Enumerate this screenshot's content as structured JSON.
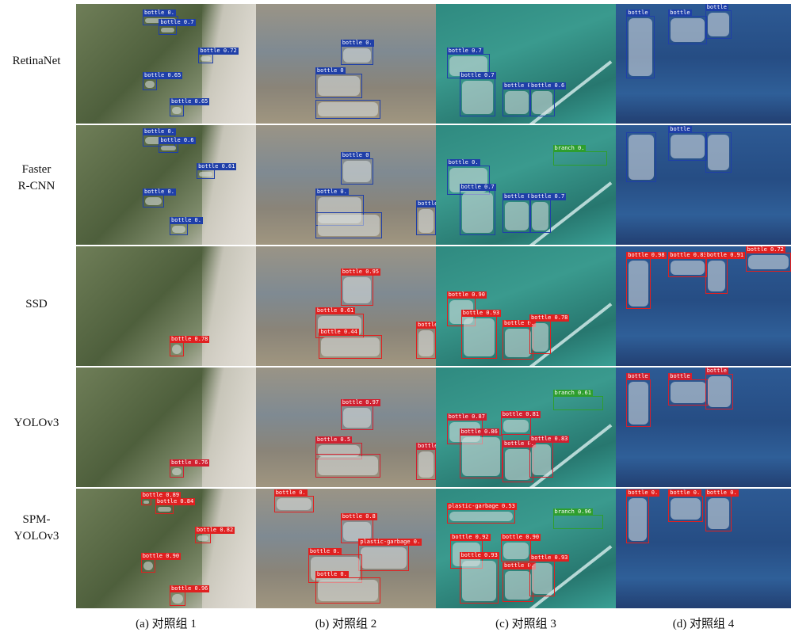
{
  "rows": [
    "RetinaNet",
    "Faster\nR-CNN",
    "SSD",
    "YOLOv3",
    "SPM-\nYOLOv3"
  ],
  "columns": [
    "(a) 对照组 1",
    "(b) 对照组 2",
    "(c) 对照组 3",
    "(d) 对照组 4"
  ],
  "scene_colors": [
    "#5f6e4a",
    "#8c8a80",
    "#2f8a80",
    "#2b4f86"
  ],
  "box_colors": {
    "RetinaNet": "#1f3fa8",
    "Faster R-CNN": "#1f3fa8",
    "SSD": "#e02020",
    "YOLOv3": "#d02030",
    "SPM-YOLOv3": "#e02020",
    "branch": "#2e9e2e"
  },
  "detections": [
    [
      [
        [
          "bottle 0.",
          0.37,
          0.1,
          0.2,
          0.08
        ],
        [
          "bottle 0.7",
          0.46,
          0.18,
          0.1,
          0.08
        ],
        [
          "bottle 0.72",
          0.68,
          0.42,
          0.08,
          0.08
        ],
        [
          "bottle 0.65",
          0.37,
          0.62,
          0.08,
          0.1
        ],
        [
          "bottle 0.65",
          0.52,
          0.84,
          0.08,
          0.1
        ]
      ],
      [
        [
          "bottle 0.",
          0.47,
          0.35,
          0.18,
          0.16
        ],
        [
          "bottle 0",
          0.33,
          0.58,
          0.26,
          0.21
        ],
        [
          "",
          0.33,
          0.8,
          0.36,
          0.16
        ]
      ],
      [
        [
          "bottle 0.7",
          0.06,
          0.42,
          0.24,
          0.2
        ],
        [
          "bottle 0.7",
          0.13,
          0.62,
          0.2,
          0.32
        ],
        [
          "bottle 0.6",
          0.37,
          0.71,
          0.16,
          0.23
        ],
        [
          "bottle 0.6",
          0.52,
          0.71,
          0.14,
          0.23
        ]
      ],
      [
        [
          "bottle",
          0.06,
          0.1,
          0.16,
          0.52
        ],
        [
          "bottle",
          0.3,
          0.1,
          0.22,
          0.24
        ],
        [
          "bottle",
          0.51,
          0.05,
          0.15,
          0.24
        ]
      ]
    ],
    [
      [
        [
          "bottle 0.",
          0.37,
          0.08,
          0.18,
          0.1
        ],
        [
          "bottle 0.6",
          0.46,
          0.15,
          0.11,
          0.08
        ],
        [
          "bottle 0.61",
          0.67,
          0.37,
          0.1,
          0.08
        ],
        [
          "bottle 0.",
          0.37,
          0.58,
          0.12,
          0.11
        ],
        [
          "bottle 0.",
          0.52,
          0.82,
          0.1,
          0.1
        ]
      ],
      [
        [
          "bottle 0",
          0.47,
          0.28,
          0.18,
          0.22
        ],
        [
          "bottle 0.",
          0.33,
          0.58,
          0.27,
          0.26
        ],
        [
          "",
          0.33,
          0.73,
          0.37,
          0.22
        ],
        [
          "bottle",
          0.89,
          0.68,
          0.11,
          0.24
        ]
      ],
      [
        [
          "branch 0.",
          0.65,
          0.22,
          0.3,
          0.12
        ],
        [
          "bottle 0.",
          0.06,
          0.34,
          0.24,
          0.24
        ],
        [
          "bottle 0.7",
          0.13,
          0.54,
          0.2,
          0.38
        ],
        [
          "bottle 0.",
          0.37,
          0.62,
          0.16,
          0.28
        ],
        [
          "bottle 0.7",
          0.52,
          0.62,
          0.12,
          0.28
        ]
      ],
      [
        [
          "",
          0.06,
          0.06,
          0.17,
          0.42
        ],
        [
          "bottle",
          0.3,
          0.06,
          0.22,
          0.24
        ],
        [
          "",
          0.51,
          0.06,
          0.15,
          0.34
        ]
      ]
    ],
    [
      [
        [
          "bottle 0.78",
          0.52,
          0.8,
          0.08,
          0.12
        ]
      ],
      [
        [
          "bottle 0.95",
          0.47,
          0.24,
          0.18,
          0.26
        ],
        [
          "bottle 0.61",
          0.33,
          0.56,
          0.27,
          0.21
        ],
        [
          "bottle 0.44",
          0.35,
          0.74,
          0.35,
          0.2
        ],
        [
          "bottle 0.",
          0.89,
          0.68,
          0.11,
          0.26
        ]
      ],
      [
        [
          "bottle 0.90",
          0.06,
          0.43,
          0.16,
          0.24
        ],
        [
          "bottle 0.93",
          0.14,
          0.58,
          0.2,
          0.36
        ],
        [
          "bottle 0.",
          0.37,
          0.67,
          0.17,
          0.28
        ],
        [
          "bottle 0.78",
          0.52,
          0.62,
          0.12,
          0.28
        ]
      ],
      [
        [
          "bottle 0.98",
          0.06,
          0.1,
          0.14,
          0.42
        ],
        [
          "bottle 0.83",
          0.3,
          0.1,
          0.22,
          0.16
        ],
        [
          "bottle 0.91",
          0.51,
          0.1,
          0.13,
          0.3
        ],
        [
          "bottle 0.72",
          0.74,
          0.05,
          0.26,
          0.16
        ]
      ]
    ],
    [
      [
        [
          "bottle 0.76",
          0.52,
          0.82,
          0.08,
          0.1
        ]
      ],
      [
        [
          "bottle 0.97",
          0.47,
          0.32,
          0.18,
          0.2
        ],
        [
          "bottle 0.5",
          0.33,
          0.63,
          0.26,
          0.14
        ],
        [
          "",
          0.33,
          0.72,
          0.36,
          0.2
        ],
        [
          "bottle",
          0.89,
          0.68,
          0.11,
          0.26
        ]
      ],
      [
        [
          "branch 0.61",
          0.65,
          0.24,
          0.28,
          0.12
        ],
        [
          "bottle 0.87",
          0.06,
          0.44,
          0.2,
          0.2
        ],
        [
          "bottle 0.81",
          0.36,
          0.42,
          0.17,
          0.14
        ],
        [
          "bottle 0.86",
          0.13,
          0.56,
          0.24,
          0.37
        ],
        [
          "bottle 0.",
          0.37,
          0.66,
          0.17,
          0.3
        ],
        [
          "bottle 0.83",
          0.52,
          0.62,
          0.13,
          0.3
        ]
      ],
      [
        [
          "bottle",
          0.06,
          0.1,
          0.14,
          0.4
        ],
        [
          "bottle",
          0.3,
          0.1,
          0.23,
          0.22
        ],
        [
          "bottle",
          0.51,
          0.05,
          0.16,
          0.3
        ]
      ]
    ],
    [
      [
        [
          "bottle 0.89",
          0.36,
          0.08,
          0.06,
          0.06
        ],
        [
          "bottle 0.84",
          0.44,
          0.13,
          0.1,
          0.08
        ],
        [
          "bottle 0.82",
          0.66,
          0.37,
          0.09,
          0.09
        ],
        [
          "bottle 0.90",
          0.36,
          0.59,
          0.08,
          0.11
        ],
        [
          "bottle 0.96",
          0.52,
          0.86,
          0.09,
          0.12
        ]
      ],
      [
        [
          "bottle 0.",
          0.1,
          0.06,
          0.22,
          0.14
        ],
        [
          "bottle 0.8",
          0.47,
          0.26,
          0.18,
          0.2
        ],
        [
          "plastic-garbage 0.",
          0.57,
          0.47,
          0.28,
          0.22
        ],
        [
          "bottle 0.",
          0.29,
          0.55,
          0.3,
          0.24
        ],
        [
          "bottle 0.",
          0.33,
          0.74,
          0.36,
          0.22
        ]
      ],
      [
        [
          "plastic-garbage 0.53",
          0.06,
          0.17,
          0.38,
          0.12
        ],
        [
          "branch 0.96",
          0.65,
          0.22,
          0.28,
          0.12
        ],
        [
          "bottle 0.92",
          0.08,
          0.43,
          0.18,
          0.24
        ],
        [
          "bottle 0.90",
          0.36,
          0.43,
          0.17,
          0.18
        ],
        [
          "bottle 0.93",
          0.13,
          0.58,
          0.22,
          0.38
        ],
        [
          "bottle 0.",
          0.37,
          0.67,
          0.17,
          0.28
        ],
        [
          "bottle 0.93",
          0.52,
          0.6,
          0.14,
          0.3
        ]
      ],
      [
        [
          "bottle 0.",
          0.06,
          0.06,
          0.13,
          0.4
        ],
        [
          "bottle 0.",
          0.3,
          0.06,
          0.2,
          0.22
        ],
        [
          "bottle 0.",
          0.51,
          0.06,
          0.15,
          0.3
        ]
      ]
    ]
  ]
}
